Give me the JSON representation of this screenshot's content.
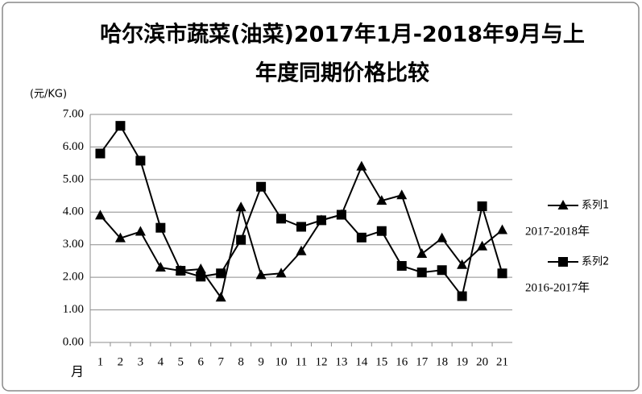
{
  "chart_data": {
    "type": "line",
    "title": [
      "哈尔滨市蔬菜(油菜)2017年1月-2018年9月与上",
      "年度同期价格比较"
    ],
    "y_label": "(元/KG)",
    "x_label": "月",
    "categories": [
      "1",
      "2",
      "3",
      "4",
      "5",
      "6",
      "7",
      "8",
      "9",
      "10",
      "11",
      "12",
      "13",
      "14",
      "15",
      "16",
      "17",
      "18",
      "19",
      "20",
      "21"
    ],
    "series": [
      {
        "name": "系列1",
        "color": "#000000",
        "marker": "triangle",
        "annotation": "2017-2018年",
        "values": [
          3.9,
          3.2,
          3.4,
          2.3,
          2.2,
          2.25,
          1.38,
          4.15,
          2.07,
          2.12,
          2.8,
          3.75,
          3.92,
          5.4,
          4.35,
          4.52,
          2.72,
          3.2,
          2.38,
          2.95,
          3.45
        ]
      },
      {
        "name": "系列2",
        "color": "#000000",
        "marker": "square",
        "annotation": "2016-2017年",
        "values": [
          5.8,
          6.65,
          5.58,
          3.52,
          2.2,
          2.02,
          2.12,
          3.15,
          4.78,
          3.8,
          3.55,
          3.75,
          3.92,
          3.22,
          3.42,
          2.35,
          2.15,
          2.22,
          1.42,
          4.18,
          2.12
        ]
      }
    ],
    "ylim": [
      0,
      7
    ],
    "yticks": [
      {
        "value": 0,
        "label": "0.00"
      },
      {
        "value": 1,
        "label": "1.00"
      },
      {
        "value": 2,
        "label": "2.00"
      },
      {
        "value": 3,
        "label": "3.00"
      },
      {
        "value": 4,
        "label": "4.00"
      },
      {
        "value": 5,
        "label": "5.00"
      },
      {
        "value": 6,
        "label": "6.00"
      },
      {
        "value": 7,
        "label": "7.00"
      }
    ],
    "grid": true
  }
}
